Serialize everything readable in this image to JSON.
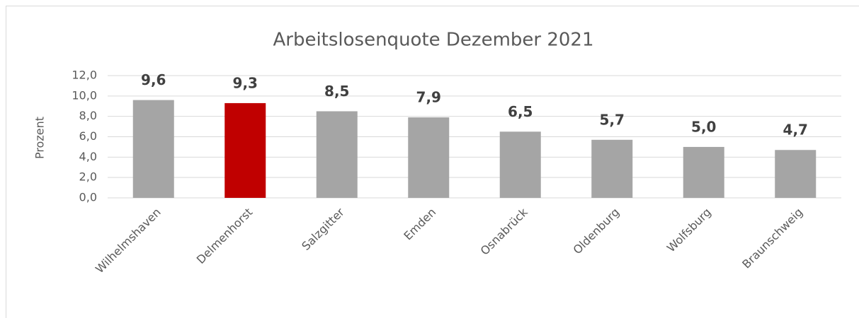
{
  "chart_data": {
    "type": "bar",
    "title": "Arbeitslosenquote Dezember 2021",
    "y_label": "Prozent",
    "categories": [
      "Wilhelmshaven",
      "Delmenhorst",
      "Salzgitter",
      "Emden",
      "Osnabrück",
      "Oldenburg",
      "Wolfsburg",
      "Braunschweig"
    ],
    "values": [
      9.6,
      9.3,
      8.5,
      7.9,
      6.5,
      5.7,
      5.0,
      4.7
    ],
    "value_labels": [
      "9,6",
      "9,3",
      "8,5",
      "7,9",
      "6,5",
      "5,7",
      "5,0",
      "4,7"
    ],
    "colors": [
      "#a5a5a5",
      "#c00000",
      "#a5a5a5",
      "#a5a5a5",
      "#a5a5a5",
      "#a5a5a5",
      "#a5a5a5",
      "#a5a5a5"
    ],
    "ylim": [
      0,
      12
    ],
    "yticks": [
      {
        "value": 0,
        "label": "0,0"
      },
      {
        "value": 2,
        "label": "2,0"
      },
      {
        "value": 4,
        "label": "4,0"
      },
      {
        "value": 6,
        "label": "6,0"
      },
      {
        "value": 8,
        "label": "8,0"
      },
      {
        "value": 10,
        "label": "10,0"
      },
      {
        "value": 12,
        "label": "12,0"
      }
    ],
    "grid": true
  }
}
